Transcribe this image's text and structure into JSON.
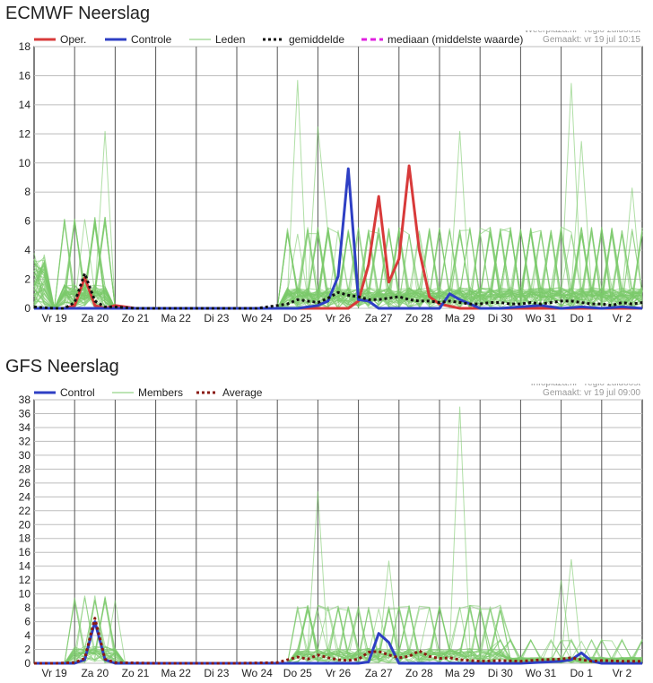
{
  "chart_data": [
    {
      "type": "line",
      "title": "ECMWF Neerslag",
      "source_lines": [
        "Weerplaza.nl - regio zuidoost",
        "Gemaakt: vr 19 jul 10:15"
      ],
      "x_tick_labels": [
        "Vr 19",
        "Za 20",
        "Zo 21",
        "Ma 22",
        "Di 23",
        "Wo 24",
        "Do 25",
        "Vr 26",
        "Za 27",
        "Zo 28",
        "Ma 29",
        "Di 30",
        "Wo 31",
        "Do 1",
        "Vr 2"
      ],
      "x_range": [
        0,
        15.0
      ],
      "ylim": [
        0,
        18
      ],
      "y_ticks": [
        0,
        2,
        4,
        6,
        8,
        10,
        12,
        14,
        16,
        18
      ],
      "grid": true,
      "legend_position": "top",
      "legend": [
        {
          "label": "Oper.",
          "color": "#d83a3a",
          "style": "solid"
        },
        {
          "label": "Controle",
          "color": "#2e3fc4",
          "style": "solid"
        },
        {
          "label": "Leden",
          "color": "#7bc96b",
          "style": "thin"
        },
        {
          "label": "gemiddelde",
          "color": "#111111",
          "style": "dotted"
        },
        {
          "label": "mediaan (middelste waarde)",
          "color": "#e020e0",
          "style": "dashed"
        }
      ],
      "series": [
        {
          "name": "Oper.",
          "color": "#d83a3a",
          "width": 3,
          "x": [
            0,
            0.5,
            0.75,
            1.0,
            1.25,
            1.5,
            1.75,
            2.0,
            2.25,
            2.5,
            2.75,
            3,
            4,
            5,
            6,
            7.25,
            7.5,
            7.75,
            8.0,
            8.25,
            8.5,
            8.75,
            9.0,
            9.25,
            9.5,
            9.75,
            10.0,
            10.5,
            11,
            12,
            13,
            14,
            15
          ],
          "y": [
            0,
            0,
            0,
            0.2,
            2.1,
            0.2,
            0,
            0.2,
            0.1,
            0,
            0,
            0,
            0,
            0,
            0,
            0,
            0,
            0,
            0.5,
            3,
            7.7,
            1.8,
            3.4,
            9.8,
            4.0,
            0.8,
            0.3,
            0,
            0,
            0,
            0,
            0,
            0
          ]
        },
        {
          "name": "Controle",
          "color": "#2e3fc4",
          "width": 3,
          "x": [
            0,
            1,
            2,
            3,
            4,
            5,
            6,
            6.5,
            7.0,
            7.25,
            7.5,
            7.75,
            8.0,
            8.25,
            8.5,
            8.75,
            9.0,
            9.5,
            10.0,
            10.25,
            10.5,
            10.75,
            11.0,
            11.5,
            12,
            12.5,
            13,
            13.5,
            14,
            14.5,
            15
          ],
          "y": [
            0,
            0,
            0,
            0,
            0,
            0,
            0,
            0,
            0.2,
            0.5,
            2.2,
            9.6,
            0.6,
            0.5,
            0,
            0,
            0,
            0,
            0,
            1.0,
            0.6,
            0.3,
            0,
            0,
            0.1,
            0.2,
            0,
            0.1,
            0,
            0.1,
            0
          ]
        },
        {
          "name": "gemiddelde",
          "color": "#111111",
          "width": 3,
          "dash": "3,3",
          "x": [
            0,
            0.5,
            0.75,
            1.0,
            1.25,
            1.5,
            1.75,
            2.0,
            2.5,
            3,
            4,
            5,
            5.5,
            5.75,
            6.0,
            6.25,
            6.5,
            6.75,
            7.0,
            7.25,
            7.5,
            7.75,
            8.0,
            8.25,
            8.5,
            8.75,
            9.0,
            9.25,
            9.5,
            9.75,
            10.0,
            10.25,
            10.5,
            10.75,
            11.0,
            11.25,
            11.5,
            11.75,
            12.0,
            12.25,
            12.5,
            12.75,
            13.0,
            13.25,
            13.5,
            13.75,
            14.0,
            14.25,
            14.5,
            14.75,
            15
          ],
          "y": [
            0.1,
            0,
            0,
            0.4,
            2.4,
            0.5,
            0.1,
            0.1,
            0,
            0,
            0,
            0,
            0,
            0.1,
            0.2,
            0.3,
            0.6,
            0.5,
            0.4,
            0.7,
            1.1,
            0.9,
            0.8,
            0.6,
            0.6,
            0.7,
            0.8,
            0.6,
            0.5,
            0.5,
            0.4,
            0.5,
            0.4,
            0.3,
            0.3,
            0.4,
            0.4,
            0.3,
            0.3,
            0.4,
            0.3,
            0.4,
            0.5,
            0.5,
            0.4,
            0.3,
            0.3,
            0.2,
            0.4,
            0.3,
            0.4
          ]
        }
      ],
      "members": {
        "name": "Leden",
        "color": "#7bc96b",
        "count": 50,
        "approx_peak_values": [
          12.2,
          15.7,
          12.5,
          12.2,
          15.5,
          11.5,
          8.3
        ]
      }
    },
    {
      "type": "line",
      "title": "GFS Neerslag",
      "source_lines": [
        "Infoplaza.nl - regio zuidoost",
        "Gemaakt: vr 19 jul 09:00"
      ],
      "x_tick_labels": [
        "Vr 19",
        "Za 20",
        "Zo 21",
        "Ma 22",
        "Di 23",
        "Wo 24",
        "Do 25",
        "Vr 26",
        "Za 27",
        "Zo 28",
        "Ma 29",
        "Di 30",
        "Wo 31",
        "Do 1",
        "Vr 2"
      ],
      "x_range": [
        0,
        15.0
      ],
      "ylim": [
        0,
        38
      ],
      "y_ticks": [
        0,
        2,
        4,
        6,
        8,
        10,
        12,
        14,
        16,
        18,
        20,
        22,
        24,
        26,
        28,
        30,
        32,
        34,
        36,
        38
      ],
      "grid": true,
      "legend_position": "top",
      "legend": [
        {
          "label": "Control",
          "color": "#2e3fc4",
          "style": "solid"
        },
        {
          "label": "Members",
          "color": "#7bc96b",
          "style": "thin"
        },
        {
          "label": "Average",
          "color": "#8a1a12",
          "style": "dotted"
        }
      ],
      "series": [
        {
          "name": "Control",
          "color": "#2e3fc4",
          "width": 3,
          "x": [
            0,
            0.5,
            0.75,
            1.0,
            1.25,
            1.5,
            1.75,
            2.0,
            3,
            4,
            5,
            6,
            7,
            8.0,
            8.25,
            8.5,
            8.75,
            9.0,
            9.25,
            9.5,
            10,
            11,
            12,
            13.0,
            13.25,
            13.5,
            13.75,
            14.0,
            14.5,
            15
          ],
          "y": [
            0,
            0,
            0,
            0,
            0.5,
            6.0,
            0.5,
            0,
            0,
            0,
            0,
            0,
            0,
            0,
            0.2,
            4.3,
            3.0,
            0,
            0,
            0,
            0,
            0,
            0,
            0.3,
            0.5,
            1.5,
            0.3,
            0,
            0,
            0
          ]
        },
        {
          "name": "Average",
          "color": "#8a1a12",
          "width": 3,
          "dash": "3,3",
          "x": [
            0,
            0.5,
            1.0,
            1.25,
            1.5,
            1.75,
            2.0,
            3,
            4,
            5,
            6.0,
            6.25,
            6.5,
            6.75,
            7.0,
            7.25,
            7.5,
            7.75,
            8.0,
            8.25,
            8.5,
            8.75,
            9.0,
            9.25,
            9.5,
            9.75,
            10.0,
            10.25,
            10.5,
            10.75,
            11.0,
            11.5,
            12.0,
            12.5,
            13.0,
            13.25,
            13.5,
            13.75,
            14.0,
            14.5,
            15
          ],
          "y": [
            0,
            0,
            0.1,
            0.7,
            6.5,
            0.6,
            0.1,
            0,
            0,
            0,
            0.1,
            0.5,
            0.9,
            0.6,
            1.2,
            0.8,
            0.5,
            0.4,
            0.6,
            1.6,
            1.7,
            1.2,
            0.8,
            1.0,
            1.8,
            1.0,
            0.7,
            0.8,
            0.5,
            0.4,
            0.3,
            0.4,
            0.3,
            0.5,
            0.6,
            0.8,
            0.5,
            0.3,
            0.4,
            0.3,
            0.3
          ]
        }
      ],
      "members": {
        "name": "Members",
        "color": "#7bc96b",
        "count": 30,
        "approx_peak_values": [
          9.0,
          24.8,
          14.8,
          37.0,
          15.0,
          12.0
        ]
      }
    }
  ]
}
